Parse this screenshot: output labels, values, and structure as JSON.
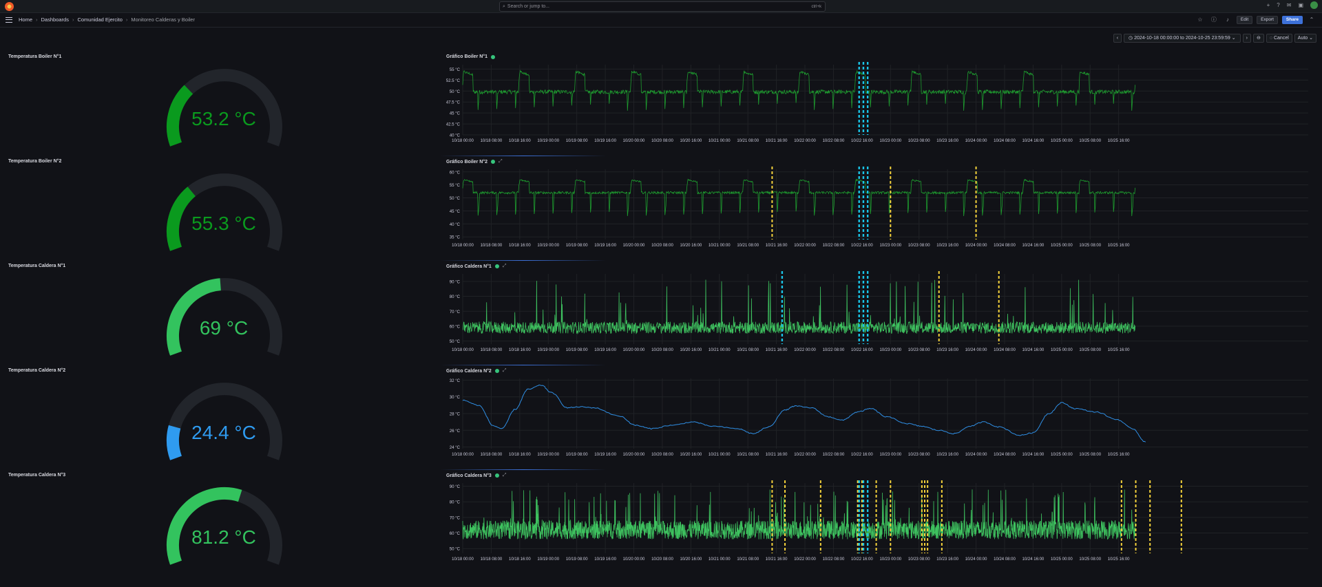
{
  "topbar": {
    "search_placeholder": "Search or jump to...",
    "search_shortcut": "ctrl+k",
    "plus_label": "+"
  },
  "breadcrumbs": [
    "Home",
    "Dashboards",
    "Comunidad Ejercito",
    "Monitoreo Calderas y Boiler"
  ],
  "toolbar": {
    "edit_label": "Edit",
    "export_label": "Export",
    "share_label": "Share"
  },
  "timepicker": {
    "range_label": "2024-10-18 00:00:00 to 2024-10-25 23:59:59",
    "cancel_label": "Cancel",
    "refresh_label": "Auto"
  },
  "gauges": [
    {
      "title": "Temperatura Boiler N°1",
      "value": 53.2,
      "display": "53.2 °C",
      "color": "#0a9a1e",
      "fraction": 0.3
    },
    {
      "title": "Temperatura Boiler N°2",
      "value": 55.3,
      "display": "55.3 °C",
      "color": "#0a9a1e",
      "fraction": 0.32
    },
    {
      "title": "Temperatura Caldera N°1",
      "value": 69,
      "display": "69 °C",
      "color": "#33c35e",
      "fraction": 0.48
    },
    {
      "title": "Temperatura Caldera N°2",
      "value": 24.4,
      "display": "24.4 °C",
      "color": "#2f9bf0",
      "fraction": 0.16
    },
    {
      "title": "Temperatura Caldera N°3",
      "value": 81.2,
      "display": "81.2 °C",
      "color": "#33c35e",
      "fraction": 0.58
    }
  ],
  "x_ticks": [
    "10/18 00:00",
    "10/18 08:00",
    "10/18 16:00",
    "10/19 00:00",
    "10/19 08:00",
    "10/19 16:00",
    "10/20 00:00",
    "10/20 08:00",
    "10/20 16:00",
    "10/21 00:00",
    "10/21 08:00",
    "10/21 16:00",
    "10/22 00:00",
    "10/22 08:00",
    "10/22 16:00",
    "10/23 00:00",
    "10/23 08:00",
    "10/23 16:00",
    "10/24 00:00",
    "10/24 08:00",
    "10/24 16:00",
    "10/25 00:00",
    "10/25 08:00",
    "10/25 16:00"
  ],
  "charts": [
    {
      "title": "Gráfico Boiler N°1",
      "color": "#1e9e2f",
      "y_ticks": [
        "55 °C",
        "52.5 °C",
        "50 °C",
        "47.5 °C",
        "45 °C",
        "42.5 °C",
        "40 °C"
      ],
      "ylim": [
        40,
        56
      ],
      "pattern": "boiler",
      "base": 49.8,
      "peak": 54.5,
      "dip": 45.5,
      "markers_cyan": [
        13.9,
        14.05,
        14.2
      ],
      "markers_yellow": []
    },
    {
      "title": "Gráfico Boiler N°2",
      "color": "#1e9e2f",
      "y_ticks": [
        "60 °C",
        "55 °C",
        "50 °C",
        "45 °C",
        "40 °C",
        "35 °C"
      ],
      "ylim": [
        34,
        61
      ],
      "pattern": "boiler",
      "base": 52,
      "peak": 57,
      "dip": 43,
      "markers_cyan": [
        13.9,
        14.05,
        14.2
      ],
      "markers_yellow": [
        10.85,
        15.0,
        18.0
      ]
    },
    {
      "title": "Gráfico Caldera N°1",
      "color": "#3ec25f",
      "y_ticks": [
        "90 °C",
        "80 °C",
        "70 °C",
        "60 °C",
        "50 °C"
      ],
      "ylim": [
        48,
        95
      ],
      "pattern": "spiky",
      "base": 59,
      "peak": 92,
      "dip": 50,
      "markers_cyan": [
        11.2,
        13.9,
        14.05,
        14.2
      ],
      "markers_yellow": [
        16.7,
        18.8
      ]
    },
    {
      "title": "Gráfico Caldera N°2",
      "color": "#2f8fe5",
      "y_ticks": [
        "32 °C",
        "30 °C",
        "28 °C",
        "26 °C",
        "24 °C"
      ],
      "ylim": [
        23.8,
        32.2
      ],
      "pattern": "smooth",
      "points": [
        [
          0,
          29.6
        ],
        [
          0.6,
          29.0
        ],
        [
          1.2,
          26.5
        ],
        [
          1.5,
          26.2
        ],
        [
          2.0,
          28.5
        ],
        [
          2.5,
          30.9
        ],
        [
          3.0,
          31.4
        ],
        [
          3.4,
          30.5
        ],
        [
          4.0,
          28.7
        ],
        [
          4.5,
          28.8
        ],
        [
          5.0,
          28.7
        ],
        [
          6.0,
          27.7
        ],
        [
          6.6,
          26.6
        ],
        [
          7.2,
          26.2
        ],
        [
          8.0,
          26.6
        ],
        [
          8.8,
          27.0
        ],
        [
          9.5,
          26.5
        ],
        [
          10.5,
          26.2
        ],
        [
          11.1,
          25.6
        ],
        [
          11.7,
          26.4
        ],
        [
          12.3,
          28.4
        ],
        [
          12.7,
          28.9
        ],
        [
          13.3,
          28.7
        ],
        [
          14.0,
          27.6
        ],
        [
          14.5,
          27.2
        ],
        [
          15.1,
          28.2
        ],
        [
          15.6,
          28.6
        ],
        [
          16.2,
          27.6
        ],
        [
          17.0,
          26.8
        ],
        [
          17.5,
          26.5
        ],
        [
          18.2,
          26.0
        ],
        [
          18.8,
          25.6
        ],
        [
          19.4,
          26.5
        ],
        [
          19.9,
          27.0
        ],
        [
          20.5,
          26.4
        ],
        [
          21.3,
          25.4
        ],
        [
          21.8,
          25.7
        ],
        [
          22.4,
          28.0
        ],
        [
          22.9,
          29.3
        ],
        [
          23.4,
          28.6
        ],
        [
          24.2,
          28.2
        ],
        [
          25.0,
          27.3
        ],
        [
          25.6,
          26.2
        ],
        [
          26.1,
          24.6
        ]
      ],
      "markers_cyan": [],
      "markers_yellow": []
    },
    {
      "title": "Gráfico Caldera N°3",
      "color": "#3ec25f",
      "y_ticks": [
        "90 °C",
        "80 °C",
        "70 °C",
        "60 °C",
        "50 °C"
      ],
      "ylim": [
        47,
        92
      ],
      "pattern": "dense",
      "base": 62,
      "peak": 88,
      "dip": 52,
      "markers_cyan": [
        13.9,
        14.05,
        14.2
      ],
      "markers_yellow": [
        10.85,
        11.3,
        12.55,
        13.85,
        14.0,
        14.5,
        15.0,
        16.1,
        16.2,
        16.3,
        16.8,
        23.1,
        23.6,
        24.1,
        25.2
      ]
    }
  ]
}
